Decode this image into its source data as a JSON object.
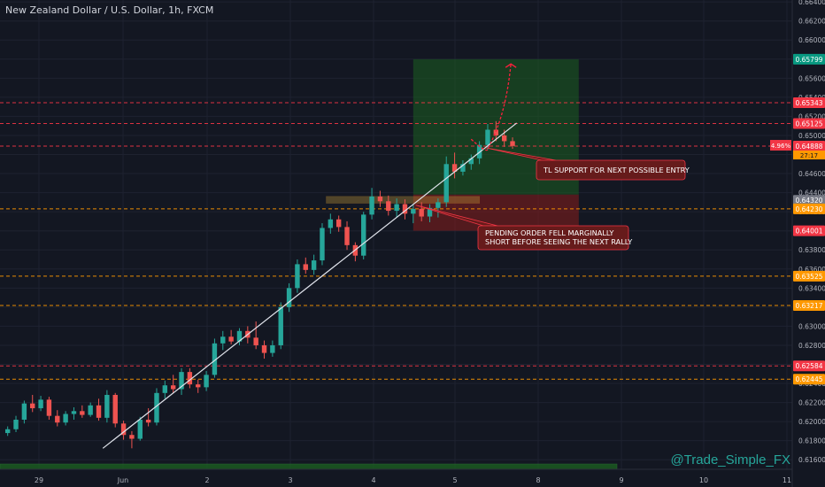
{
  "header": {
    "title": "New Zealand Dollar / U.S. Dollar, 1h, FXCM"
  },
  "watermark": "@Trade_Simple_FX",
  "colors": {
    "background": "#131722",
    "grid": "#1e2230",
    "up": "#26a69a",
    "down": "#ef5350",
    "text": "#b2b5be",
    "red_level": "#f23645",
    "orange_level": "#ff9800",
    "green_level": "#089981",
    "target_zone": "#1b5e20",
    "stop_zone": "#7f1d1d",
    "annotation_fill": "#661b1b",
    "annotation_border": "#f23645"
  },
  "chart_data": {
    "type": "candlestick",
    "title": "New Zealand Dollar / U.S. Dollar, 1h, FXCM",
    "ylim": [
      0.615,
      0.6642
    ],
    "x_ticks": [
      "29",
      "Jun",
      "2",
      "3",
      "4",
      "5",
      "8",
      "9",
      "10",
      "11"
    ],
    "y_ticks": [
      0.664,
      0.662,
      0.66,
      0.658,
      0.656,
      0.654,
      0.652,
      0.65,
      0.648,
      0.646,
      0.644,
      0.642,
      0.64,
      0.638,
      0.636,
      0.634,
      0.632,
      0.63,
      0.628,
      0.626,
      0.624,
      0.622,
      0.62,
      0.618,
      0.616
    ],
    "y_tick_labels": [
      "0.66400",
      "0.66200",
      "0.66000",
      "0.65800",
      "0.65600",
      "0.65400",
      "0.65200",
      "0.65000",
      "0.64800",
      "0.64600",
      "0.64400",
      "0.64200",
      "0.64000",
      "0.63800",
      "0.63600",
      "0.63400",
      "0.63200",
      "0.63000",
      "0.62800",
      "0.62600",
      "0.62400",
      "0.62200",
      "0.62000",
      "0.61800",
      "0.61600"
    ],
    "levels": [
      {
        "price": 0.65799,
        "label": "0.65799",
        "kind": "green",
        "line": false
      },
      {
        "price": 0.65343,
        "label": "0.65343",
        "kind": "red",
        "line": true
      },
      {
        "price": 0.65125,
        "label": "0.65125",
        "kind": "red",
        "line": true
      },
      {
        "price": 0.64888,
        "label": "0.64888",
        "kind": "red",
        "line": true
      },
      {
        "price": 0.6432,
        "label": "0.64320",
        "kind": "gray",
        "line": false
      },
      {
        "price": 0.6423,
        "label": "0.64230",
        "kind": "orange",
        "line": true
      },
      {
        "price": 0.64001,
        "label": "0.64001",
        "kind": "red",
        "line": false
      },
      {
        "price": 0.63525,
        "label": "0.63525",
        "kind": "orange",
        "line": true
      },
      {
        "price": 0.63217,
        "label": "0.63217",
        "kind": "orange",
        "line": true
      },
      {
        "price": 0.62584,
        "label": "0.62584",
        "kind": "red",
        "line": true
      },
      {
        "price": 0.62445,
        "label": "0.62445",
        "kind": "orange",
        "line": true
      }
    ],
    "current_price": {
      "price": 0.64888,
      "label": "0.64888",
      "change": "4.96%",
      "countdown": "27:17"
    },
    "trendline": {
      "from": {
        "t": 12.0,
        "p": 0.6172
      },
      "to": {
        "t": 62.0,
        "p": 0.6513
      }
    },
    "position": {
      "t_start": 49.5,
      "t_end": 69.5,
      "entry": 0.6438,
      "target": 0.65799,
      "stop": 0.64001
    },
    "pending_zone": {
      "t_start": 39.0,
      "t_end": 57.5,
      "top": 0.6436,
      "bottom": 0.6429
    },
    "projection": [
      [
        56.5,
        0.6496
      ],
      [
        58.5,
        0.6486
      ],
      [
        60.0,
        0.651
      ],
      [
        61.3,
        0.6575
      ]
    ],
    "annotations": [
      {
        "text_lines": [
          "TL SUPPORT FOR NEXT POSSIBLE ENTRY"
        ],
        "anchor": {
          "t": 58.3,
          "p": 0.6487
        }
      },
      {
        "text_lines": [
          "PENDING ORDER FELL MARGINALLY",
          "SHORT BEFORE SEEING THE NEXT RALLY"
        ],
        "anchor": {
          "t": 49.8,
          "p": 0.6427
        }
      }
    ],
    "candles": [
      [
        0.6188,
        0.6195,
        0.6185,
        0.6192
      ],
      [
        0.6192,
        0.6206,
        0.6189,
        0.6202
      ],
      [
        0.6202,
        0.6222,
        0.6198,
        0.6219
      ],
      [
        0.6219,
        0.6228,
        0.621,
        0.6214
      ],
      [
        0.6214,
        0.6227,
        0.6211,
        0.6223
      ],
      [
        0.6223,
        0.6226,
        0.6202,
        0.6206
      ],
      [
        0.6206,
        0.6212,
        0.6195,
        0.6199
      ],
      [
        0.6199,
        0.6211,
        0.6196,
        0.6208
      ],
      [
        0.6208,
        0.6215,
        0.6202,
        0.6211
      ],
      [
        0.6211,
        0.6217,
        0.6204,
        0.6207
      ],
      [
        0.6207,
        0.622,
        0.6205,
        0.6217
      ],
      [
        0.6217,
        0.6224,
        0.6201,
        0.6204
      ],
      [
        0.6204,
        0.6233,
        0.6199,
        0.6228
      ],
      [
        0.6228,
        0.623,
        0.6194,
        0.6198
      ],
      [
        0.6198,
        0.6201,
        0.6181,
        0.6186
      ],
      [
        0.6186,
        0.619,
        0.6172,
        0.6182
      ],
      [
        0.6182,
        0.6205,
        0.618,
        0.6202
      ],
      [
        0.6202,
        0.6214,
        0.6195,
        0.6199
      ],
      [
        0.6199,
        0.6235,
        0.6196,
        0.623
      ],
      [
        0.623,
        0.6243,
        0.6224,
        0.6238
      ],
      [
        0.6238,
        0.6249,
        0.623,
        0.6234
      ],
      [
        0.6234,
        0.6256,
        0.6228,
        0.6252
      ],
      [
        0.6252,
        0.6256,
        0.6235,
        0.6239
      ],
      [
        0.6239,
        0.6244,
        0.623,
        0.6236
      ],
      [
        0.6236,
        0.6253,
        0.6232,
        0.6249
      ],
      [
        0.6249,
        0.6287,
        0.6246,
        0.6282
      ],
      [
        0.6282,
        0.6295,
        0.6275,
        0.6289
      ],
      [
        0.6289,
        0.6296,
        0.6281,
        0.6284
      ],
      [
        0.6284,
        0.6298,
        0.628,
        0.6295
      ],
      [
        0.6295,
        0.63,
        0.6282,
        0.6288
      ],
      [
        0.6288,
        0.6305,
        0.6276,
        0.628
      ],
      [
        0.628,
        0.6285,
        0.6266,
        0.6272
      ],
      [
        0.6272,
        0.6285,
        0.6268,
        0.628
      ],
      [
        0.628,
        0.6325,
        0.6276,
        0.632
      ],
      [
        0.632,
        0.6345,
        0.6315,
        0.634
      ],
      [
        0.634,
        0.637,
        0.6335,
        0.6365
      ],
      [
        0.6365,
        0.6372,
        0.6355,
        0.6359
      ],
      [
        0.6359,
        0.6375,
        0.6354,
        0.6369
      ],
      [
        0.6369,
        0.6408,
        0.6364,
        0.6403
      ],
      [
        0.6403,
        0.6418,
        0.6397,
        0.6412
      ],
      [
        0.6412,
        0.6416,
        0.6399,
        0.6404
      ],
      [
        0.6404,
        0.641,
        0.638,
        0.6385
      ],
      [
        0.6385,
        0.6388,
        0.6368,
        0.6374
      ],
      [
        0.6374,
        0.642,
        0.637,
        0.6417
      ],
      [
        0.6417,
        0.6445,
        0.6412,
        0.6436
      ],
      [
        0.6436,
        0.6442,
        0.6425,
        0.6431
      ],
      [
        0.6431,
        0.6437,
        0.6416,
        0.6421
      ],
      [
        0.6421,
        0.6434,
        0.6414,
        0.6428
      ],
      [
        0.6428,
        0.6433,
        0.6412,
        0.6418
      ],
      [
        0.6418,
        0.6428,
        0.6408,
        0.6423
      ],
      [
        0.6423,
        0.643,
        0.641,
        0.6415
      ],
      [
        0.6415,
        0.6428,
        0.6409,
        0.6424
      ],
      [
        0.6424,
        0.6434,
        0.6414,
        0.643
      ],
      [
        0.643,
        0.6478,
        0.6425,
        0.647
      ],
      [
        0.647,
        0.6482,
        0.6455,
        0.6462
      ],
      [
        0.6462,
        0.6474,
        0.6458,
        0.647
      ],
      [
        0.647,
        0.648,
        0.6464,
        0.6476
      ],
      [
        0.6476,
        0.6494,
        0.647,
        0.649
      ],
      [
        0.649,
        0.6512,
        0.6485,
        0.6506
      ],
      [
        0.6506,
        0.6515,
        0.6494,
        0.65
      ],
      [
        0.65,
        0.6506,
        0.6488,
        0.6494
      ],
      [
        0.6494,
        0.6498,
        0.6486,
        0.6489
      ]
    ]
  }
}
